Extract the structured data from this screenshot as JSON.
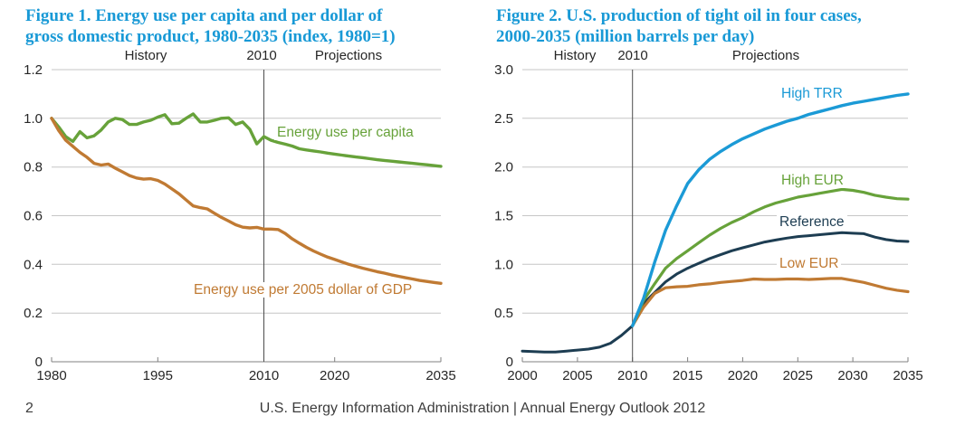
{
  "page": {
    "footer_page_number": "2",
    "footer_text": "U.S. Energy Information Administration | Annual Energy Outlook 2012"
  },
  "colors": {
    "title_blue": "#1899d6",
    "green": "#67a23a",
    "orange": "#c07a33",
    "navy": "#1d3d52",
    "bright_blue": "#1b9ad6",
    "grid_line": "#c6c6c6",
    "axis_line": "#808080",
    "divider_line": "#4d4d4d",
    "axis_text": "#262626"
  },
  "chart_data": [
    {
      "type": "line",
      "title": "Figure 1. Energy use per capita and per dollar of gross domestic product, 1980-2035 (index, 1980=1)",
      "title_lines": [
        "Figure 1. Energy use per capita and per dollar of",
        "gross domestic product, 1980-2035 (index, 1980=1)"
      ],
      "header": {
        "history": "History",
        "divider": "2010",
        "projections": "Projections"
      },
      "xlim": [
        1980,
        2035
      ],
      "ylim": [
        0,
        1.2
      ],
      "yticks": [
        0,
        0.2,
        0.4,
        0.6,
        0.8,
        1.0,
        1.2
      ],
      "ytick_labels": [
        "0",
        "0.2",
        "0.4",
        "0.6",
        "0.8",
        "1.0",
        "1.2"
      ],
      "xticks": [
        1980,
        1995,
        2010,
        2020,
        2035
      ],
      "divider_x": 2010,
      "grid": true,
      "legend_position": "inline-annotations",
      "series": [
        {
          "name": "Energy use per capita",
          "color": "#67a23a",
          "w": 3.4,
          "x_start": 1980,
          "values": [
            1.0,
            0.965,
            0.925,
            0.905,
            0.945,
            0.92,
            0.928,
            0.952,
            0.985,
            1.0,
            0.995,
            0.975,
            0.975,
            0.985,
            0.992,
            1.005,
            1.015,
            0.978,
            0.98,
            1.0,
            1.018,
            0.985,
            0.985,
            0.992,
            1.0,
            1.002,
            0.975,
            0.985,
            0.955,
            0.895,
            0.925,
            0.91,
            0.901,
            0.894,
            0.886,
            0.875,
            0.87,
            0.866,
            0.862,
            0.857,
            0.853,
            0.849,
            0.845,
            0.841,
            0.838,
            0.834,
            0.83,
            0.827,
            0.824,
            0.821,
            0.818,
            0.815,
            0.812,
            0.809,
            0.806,
            0.803
          ]
        },
        {
          "name": "Energy use per 2005 dollar of GDP",
          "color": "#c07a33",
          "w": 3.4,
          "x_start": 1980,
          "values": [
            1.0,
            0.95,
            0.91,
            0.885,
            0.86,
            0.84,
            0.815,
            0.808,
            0.812,
            0.795,
            0.78,
            0.765,
            0.755,
            0.75,
            0.752,
            0.745,
            0.73,
            0.71,
            0.69,
            0.665,
            0.64,
            0.633,
            0.628,
            0.61,
            0.593,
            0.578,
            0.563,
            0.553,
            0.55,
            0.552,
            0.545,
            0.545,
            0.543,
            0.527,
            0.505,
            0.487,
            0.47,
            0.455,
            0.442,
            0.43,
            0.42,
            0.41,
            0.4,
            0.392,
            0.384,
            0.377,
            0.37,
            0.364,
            0.357,
            0.351,
            0.345,
            0.34,
            0.334,
            0.33,
            0.326,
            0.322
          ]
        }
      ]
    },
    {
      "type": "line",
      "title": "Figure 2. U.S. production of tight oil in four cases, 2000-2035 (million barrels per day)",
      "title_lines": [
        "Figure 2. U.S. production of tight oil in four cases,",
        "2000-2035 (million barrels per day)"
      ],
      "header": {
        "history": "History",
        "divider": "2010",
        "projections": "Projections"
      },
      "xlim": [
        2000,
        2035
      ],
      "ylim": [
        0,
        3.0
      ],
      "yticks": [
        0,
        0.5,
        1.0,
        1.5,
        2.0,
        2.5,
        3.0
      ],
      "ytick_labels": [
        "0",
        "0.5",
        "1.0",
        "1.5",
        "2.0",
        "2.5",
        "3.0"
      ],
      "xticks": [
        2000,
        2005,
        2010,
        2015,
        2020,
        2025,
        2030,
        2035
      ],
      "divider_x": 2010,
      "grid": true,
      "legend_position": "inline-annotations",
      "series": [
        {
          "name": "Reference",
          "color": "#1d3d52",
          "w": 3.0,
          "x_start": 2000,
          "values": [
            0.11,
            0.105,
            0.1,
            0.1,
            0.11,
            0.12,
            0.13,
            0.15,
            0.19,
            0.27,
            0.37,
            0.6,
            0.71,
            0.82,
            0.9,
            0.96,
            1.01,
            1.06,
            1.1,
            1.14,
            1.17,
            1.2,
            1.23,
            1.25,
            1.27,
            1.285,
            1.295,
            1.305,
            1.315,
            1.325,
            1.32,
            1.315,
            1.28,
            1.255,
            1.24,
            1.235
          ]
        },
        {
          "name": "Low EUR",
          "color": "#c07a33",
          "w": 3.2,
          "x_start": 2010,
          "values": [
            0.37,
            0.56,
            0.7,
            0.76,
            0.77,
            0.775,
            0.79,
            0.8,
            0.815,
            0.825,
            0.835,
            0.85,
            0.845,
            0.845,
            0.85,
            0.85,
            0.845,
            0.85,
            0.855,
            0.855,
            0.835,
            0.815,
            0.785,
            0.755,
            0.735,
            0.72
          ]
        },
        {
          "name": "High EUR",
          "color": "#67a23a",
          "w": 3.2,
          "x_start": 2010,
          "values": [
            0.37,
            0.63,
            0.8,
            0.96,
            1.06,
            1.14,
            1.22,
            1.3,
            1.37,
            1.43,
            1.48,
            1.54,
            1.59,
            1.63,
            1.66,
            1.69,
            1.71,
            1.73,
            1.75,
            1.77,
            1.76,
            1.74,
            1.71,
            1.69,
            1.675,
            1.67
          ]
        },
        {
          "name": "High TRR",
          "color": "#1b9ad6",
          "w": 3.4,
          "x_start": 2010,
          "values": [
            0.37,
            0.65,
            1.02,
            1.35,
            1.6,
            1.83,
            1.97,
            2.08,
            2.16,
            2.23,
            2.29,
            2.34,
            2.39,
            2.43,
            2.47,
            2.5,
            2.54,
            2.57,
            2.6,
            2.63,
            2.655,
            2.675,
            2.695,
            2.715,
            2.735,
            2.75
          ]
        }
      ]
    }
  ]
}
